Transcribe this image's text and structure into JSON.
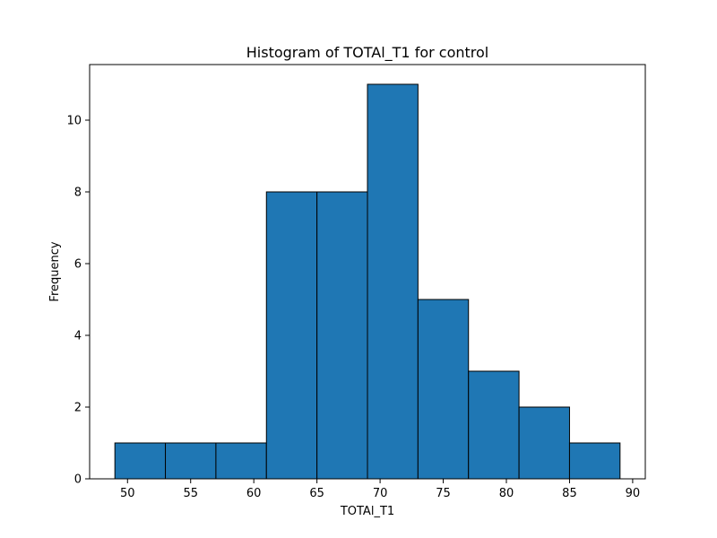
{
  "chart_data": {
    "type": "bar",
    "title": "Histogram of TOTAl_T1 for control",
    "xlabel": "TOTAl_T1",
    "ylabel": "Frequency",
    "bin_edges": [
      49,
      53,
      57,
      61,
      65,
      69,
      73,
      77,
      81,
      85,
      89
    ],
    "values": [
      1,
      1,
      1,
      8,
      8,
      11,
      5,
      3,
      2,
      1
    ],
    "xlim": [
      47,
      91
    ],
    "ylim": [
      0,
      11.55
    ],
    "x_ticks": [
      50,
      55,
      60,
      65,
      70,
      75,
      80,
      85,
      90
    ],
    "y_ticks": [
      0,
      2,
      4,
      6,
      8,
      10
    ],
    "bar_color": "#1f77b4",
    "edge_color": "#000000",
    "grid": false,
    "legend": "none"
  }
}
